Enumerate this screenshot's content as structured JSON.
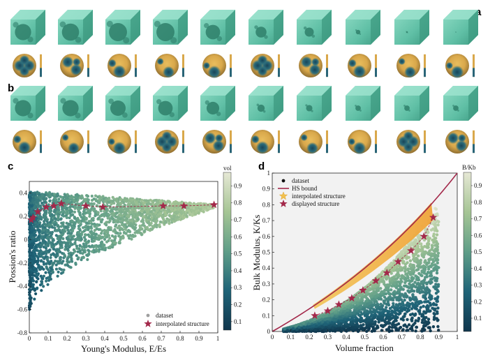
{
  "panels": {
    "a": "a",
    "b": "b",
    "c": "c",
    "d": "d"
  },
  "colors": {
    "teal_cube": "#6cc7ae",
    "sphere_low": "#1d4f66",
    "sphere_high": "#e4b455",
    "accent": "#a3284a",
    "interp_fill": "#f2c14e"
  },
  "chart_data": [
    {
      "panel": "c",
      "type": "scatter",
      "xlabel": "Young's Modulus, E/Es",
      "ylabel": "Possion's ratio",
      "xlim": [
        0,
        1
      ],
      "ylim": [
        -0.8,
        0.5
      ],
      "xticks": [
        "0",
        "0.1",
        "0.2",
        "0.3",
        "0.4",
        "0.5",
        "0.6",
        "0.7",
        "0.8",
        "0.9",
        "1"
      ],
      "yticks": [
        "-0.8",
        "-0.6",
        "-0.4",
        "-0.2",
        "0",
        "0.2",
        "0.4"
      ],
      "colorbar": {
        "label": "vol",
        "ticks": [
          "0.1",
          "0.2",
          "0.3",
          "0.4",
          "0.5",
          "0.6",
          "0.7",
          "0.8",
          "0.9"
        ],
        "range": [
          0.05,
          0.98
        ]
      },
      "legend": {
        "placement": "bottom-right",
        "entries": [
          "dataset",
          "interpolated structure"
        ]
      },
      "series": [
        {
          "name": "interpolated structure",
          "x": [
            0.01,
            0.02,
            0.045,
            0.09,
            0.13,
            0.17,
            0.3,
            0.39,
            0.71,
            0.82,
            0.98
          ],
          "y": [
            0.17,
            0.19,
            0.24,
            0.28,
            0.29,
            0.31,
            0.29,
            0.28,
            0.29,
            0.29,
            0.3
          ]
        }
      ]
    },
    {
      "panel": "d",
      "type": "scatter",
      "xlabel": "Volume fraction",
      "ylabel": "Bulk Modulus, K/Ks",
      "xlim": [
        0,
        1
      ],
      "ylim": [
        0,
        1
      ],
      "xticks": [
        "0",
        "0.1",
        "0.2",
        "0.3",
        "0.4",
        "0.5",
        "0.6",
        "0.7",
        "0.8",
        "0.9",
        "1"
      ],
      "yticks": [
        "0",
        "0.1",
        "0.2",
        "0.3",
        "0.4",
        "0.5",
        "0.6",
        "0.7",
        "0.8",
        "0.9",
        "1"
      ],
      "colorbar": {
        "label": "B/Kb",
        "ticks": [
          "0.1",
          "0.2",
          "0.3",
          "0.4",
          "0.5",
          "0.6",
          "0.7",
          "0.8",
          "0.9"
        ],
        "range": [
          0.02,
          0.98
        ]
      },
      "legend": {
        "placement": "top-left",
        "entries": [
          "dataset",
          "HS bound",
          "interpolated structure",
          "displayed structure"
        ]
      },
      "series": [
        {
          "name": "displayed structure",
          "x": [
            0.23,
            0.3,
            0.36,
            0.43,
            0.49,
            0.56,
            0.62,
            0.68,
            0.75,
            0.82,
            0.87
          ],
          "y": [
            0.1,
            0.13,
            0.17,
            0.21,
            0.26,
            0.32,
            0.37,
            0.44,
            0.51,
            0.6,
            0.72
          ]
        }
      ]
    }
  ]
}
